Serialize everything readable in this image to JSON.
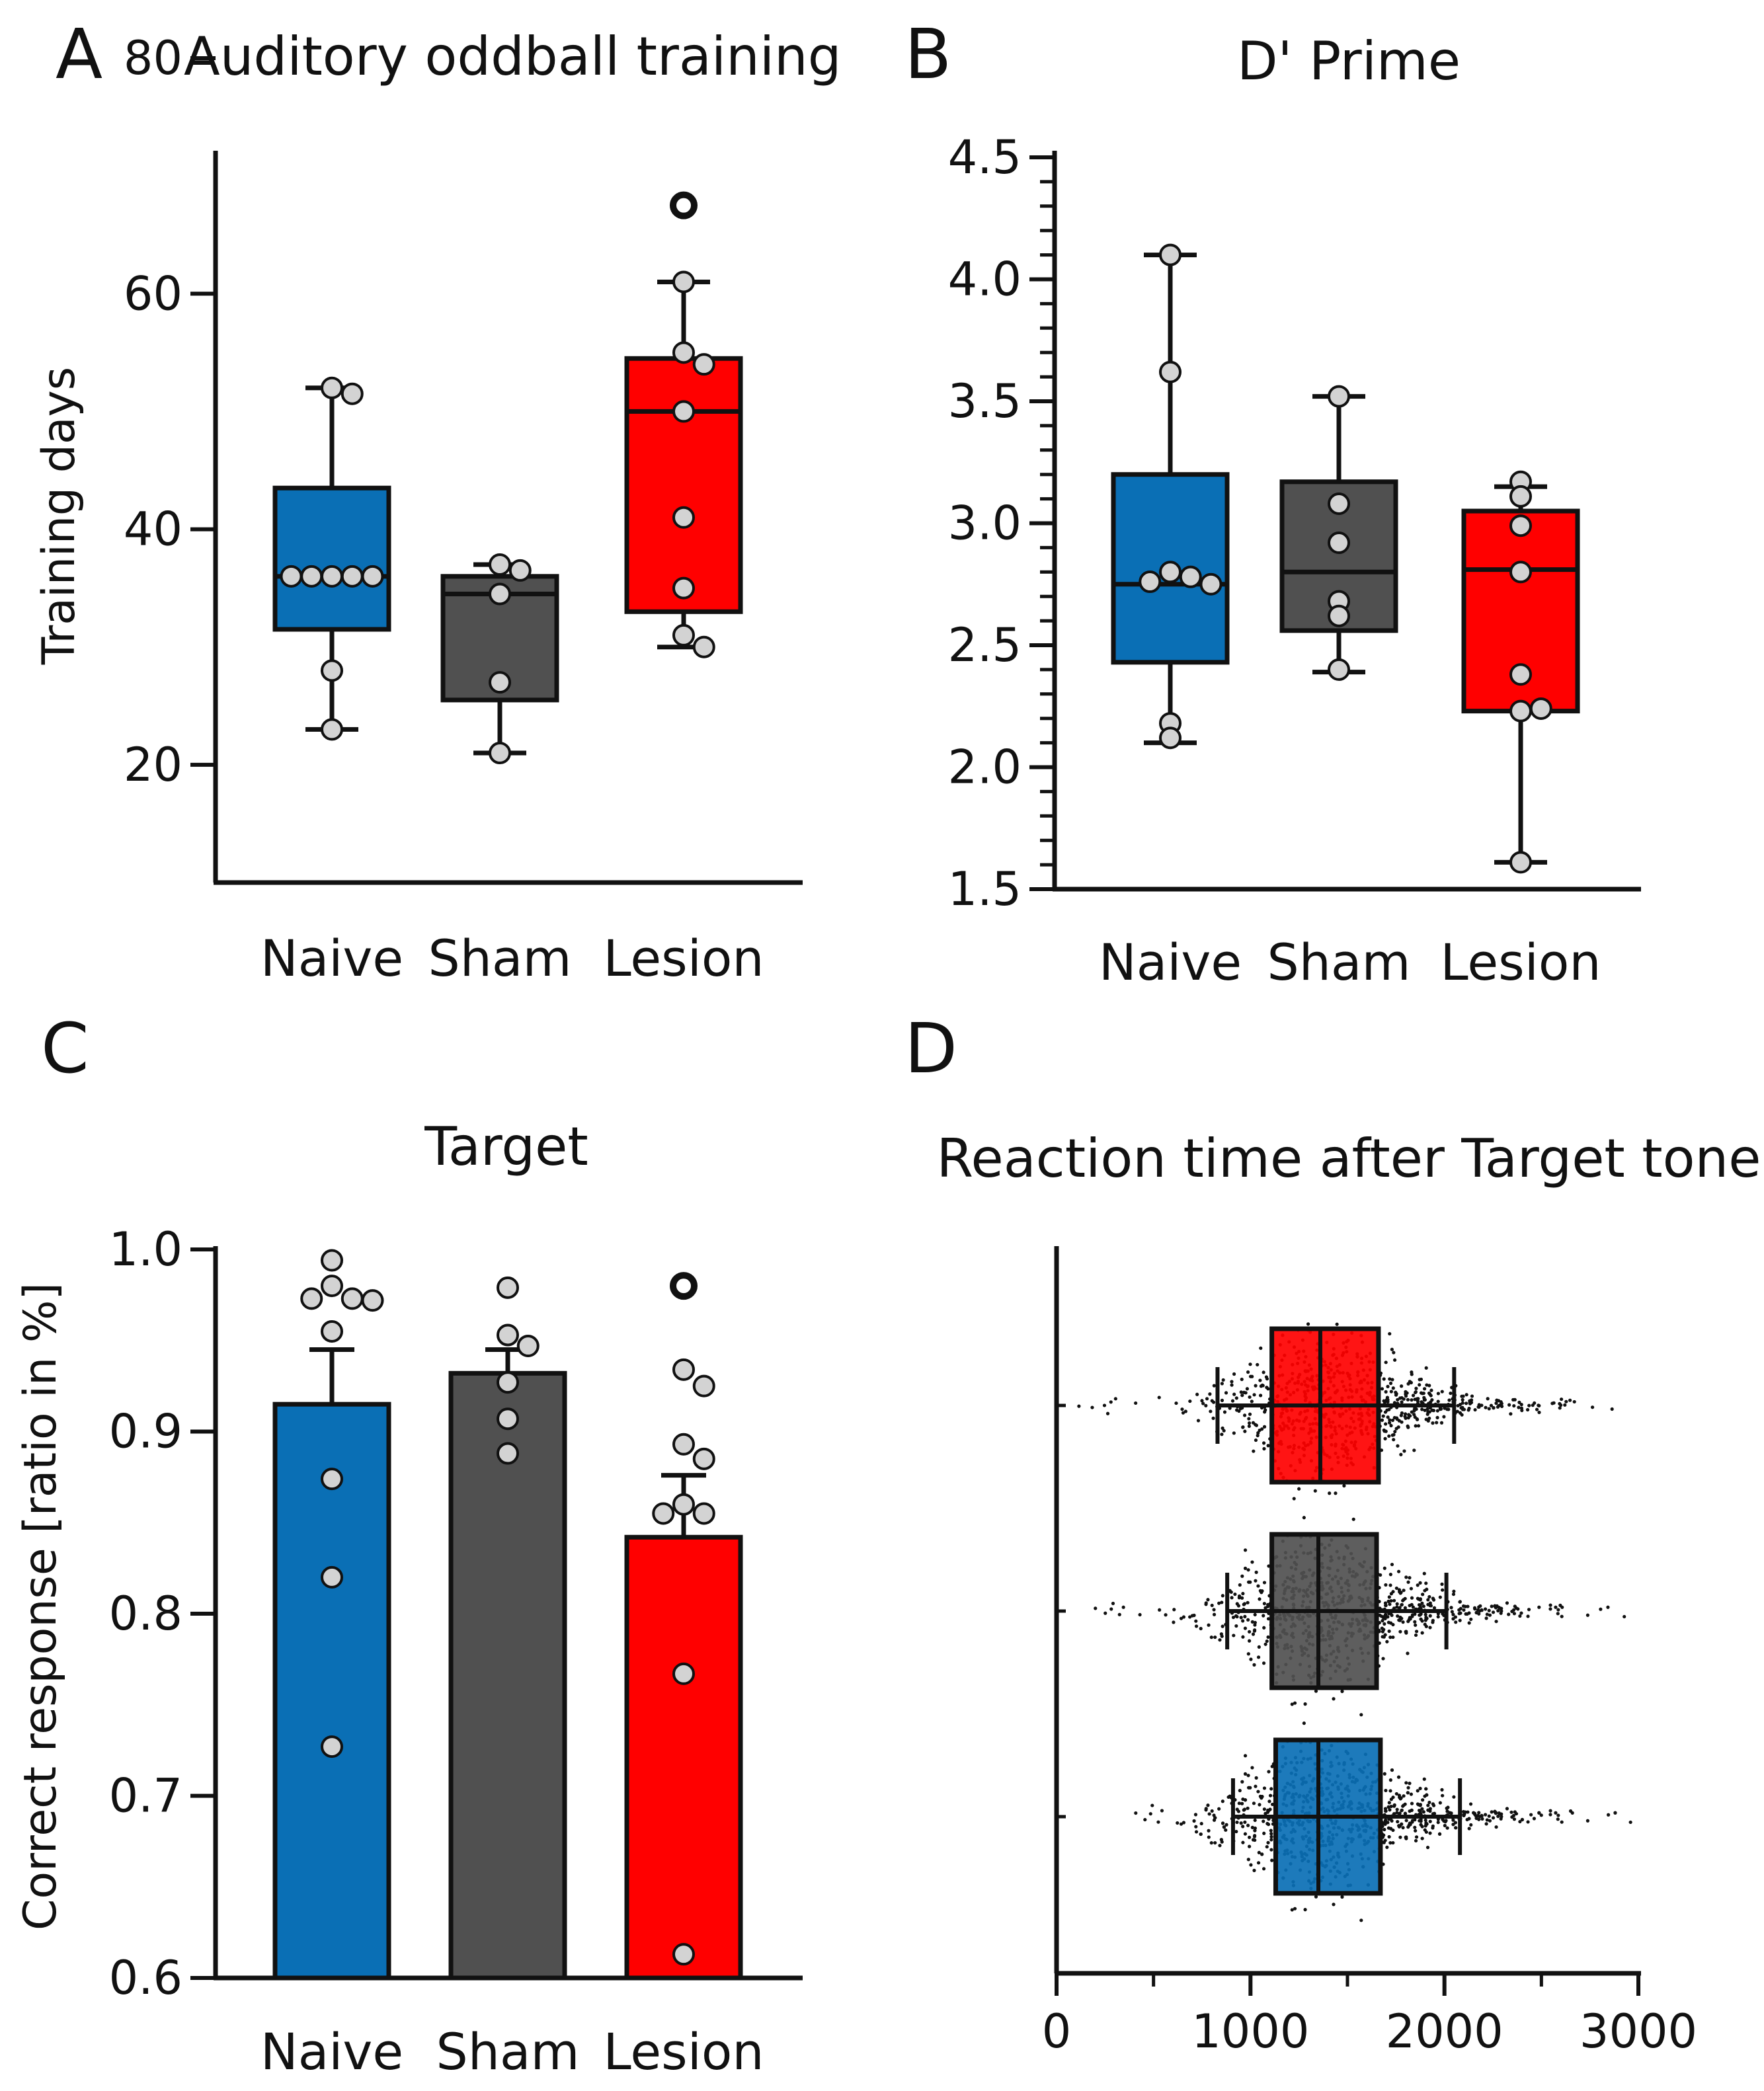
{
  "colors": {
    "naive": "#0a6fb5",
    "sham": "#505050",
    "lesion": "#ff0000",
    "point_fill": "#d3d3d3",
    "ink": "#111111"
  },
  "chart_data": [
    {
      "panel": "A",
      "type": "box",
      "title": "Auditory oddball training",
      "ylabel": "Training days",
      "xlabel": "",
      "ylim": [
        10,
        80
      ],
      "yticks": [
        20,
        40,
        60,
        80
      ],
      "ytick_labels": [
        "20",
        "40",
        "60",
        "80"
      ],
      "categories": [
        "Naive",
        "Sham",
        "Lesion"
      ],
      "series": [
        {
          "name": "Naive",
          "color_key": "naive",
          "whisker_low": 23,
          "q1": 31.5,
          "median": 36,
          "q3": 43.5,
          "whisker_high": 52,
          "points": [
            52,
            51.5,
            36,
            36,
            36,
            36,
            36,
            28,
            23
          ],
          "outliers": []
        },
        {
          "name": "Sham",
          "color_key": "sham",
          "whisker_low": 21,
          "q1": 25.5,
          "median": 34.5,
          "q3": 36,
          "whisker_high": 37,
          "points": [
            37,
            36.5,
            34.5,
            27,
            21
          ],
          "outliers": []
        },
        {
          "name": "Lesion",
          "color_key": "lesion",
          "whisker_low": 30,
          "q1": 33,
          "median": 50,
          "q3": 54.5,
          "whisker_high": 61,
          "points": [
            61,
            55,
            54,
            50,
            41,
            35,
            31,
            30
          ],
          "outliers": [
            67.5
          ]
        }
      ]
    },
    {
      "panel": "B",
      "type": "box",
      "title": "D' Prime",
      "ylabel": "",
      "xlabel": "",
      "ylim": [
        1.5,
        4.5
      ],
      "yticks": [
        1.5,
        2.0,
        2.5,
        3.0,
        3.5,
        4.0,
        4.5
      ],
      "ytick_labels": [
        "1.5",
        "2.0",
        "2.5",
        "3.0",
        "3.5",
        "4.0",
        "4.5"
      ],
      "categories": [
        "Naive",
        "Sham",
        "Lesion"
      ],
      "series": [
        {
          "name": "Naive",
          "color_key": "naive",
          "whisker_low": 2.1,
          "q1": 2.43,
          "median": 2.75,
          "q3": 3.2,
          "whisker_high": 4.1,
          "points": [
            4.1,
            3.62,
            2.8,
            2.78,
            2.76,
            2.75,
            2.18,
            2.12
          ],
          "outliers": []
        },
        {
          "name": "Sham",
          "color_key": "sham",
          "whisker_low": 2.39,
          "q1": 2.56,
          "median": 2.8,
          "q3": 3.17,
          "whisker_high": 3.52,
          "points": [
            3.52,
            3.08,
            2.92,
            2.68,
            2.62,
            2.4
          ],
          "outliers": []
        },
        {
          "name": "Lesion",
          "color_key": "lesion",
          "whisker_low": 1.61,
          "q1": 2.23,
          "median": 2.81,
          "q3": 3.05,
          "whisker_high": 3.15,
          "points": [
            3.17,
            3.11,
            2.99,
            2.8,
            2.38,
            2.23,
            2.24,
            1.61
          ],
          "outliers": []
        }
      ]
    },
    {
      "panel": "C",
      "type": "bar",
      "title": "Target",
      "ylabel": "Correct response [ratio in %]",
      "xlabel": "",
      "ylim": [
        0.6,
        1.0
      ],
      "yticks": [
        0.6,
        0.7,
        0.8,
        0.9,
        1.0
      ],
      "ytick_labels": [
        "0.6",
        "0.7",
        "0.8",
        "0.9",
        "1.0"
      ],
      "categories": [
        "Naive",
        "Sham",
        "Lesion"
      ],
      "series": [
        {
          "name": "Naive",
          "color_key": "naive",
          "mean": 0.915,
          "sem": 0.03,
          "points": [
            0.994,
            0.98,
            0.973,
            0.973,
            0.972,
            0.955,
            0.874,
            0.82,
            0.727
          ],
          "outliers": []
        },
        {
          "name": "Sham",
          "color_key": "sham",
          "mean": 0.932,
          "sem": 0.013,
          "points": [
            0.979,
            0.953,
            0.947,
            0.927,
            0.907,
            0.888
          ],
          "outliers": []
        },
        {
          "name": "Lesion",
          "color_key": "lesion",
          "mean": 0.842,
          "sem": 0.034,
          "points": [
            0.934,
            0.925,
            0.893,
            0.885,
            0.86,
            0.855,
            0.855,
            0.767,
            0.613
          ],
          "outliers": [
            0.98
          ]
        }
      ]
    },
    {
      "panel": "D",
      "type": "scatter",
      "title": "Reaction time after Target tone",
      "ylabel": "",
      "xlabel": "",
      "xlim": [
        0,
        3000
      ],
      "xticks": [
        0,
        1000,
        2000,
        3000
      ],
      "xtick_labels": [
        "0",
        "1000",
        "2000",
        "3000"
      ],
      "categories": [
        "Lesion",
        "Sham",
        "Naive"
      ],
      "series": [
        {
          "name": "Lesion",
          "color_key": "lesion",
          "whisker_low": 830,
          "q1": 1110,
          "median": 1360,
          "q3": 1660,
          "whisker_high": 2050,
          "range": [
            100,
            2980
          ],
          "n_points": 800
        },
        {
          "name": "Sham",
          "color_key": "sham",
          "whisker_low": 880,
          "q1": 1110,
          "median": 1350,
          "q3": 1650,
          "whisker_high": 2010,
          "range": [
            170,
            2960
          ],
          "n_points": 800
        },
        {
          "name": "Naive",
          "color_key": "naive",
          "whisker_low": 910,
          "q1": 1130,
          "median": 1350,
          "q3": 1670,
          "whisker_high": 2080,
          "range": [
            380,
            2990
          ],
          "n_points": 900
        }
      ]
    }
  ]
}
